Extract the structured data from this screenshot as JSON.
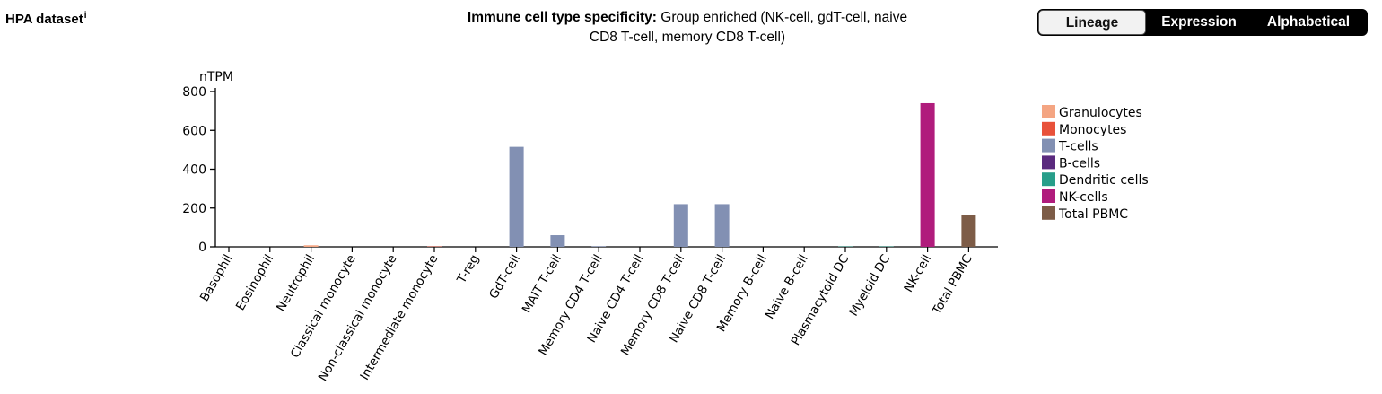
{
  "header": {
    "dataset_label": "HPA dataset",
    "info_marker": "i",
    "specificity_label": "Immune cell type specificity:",
    "specificity_value_line1": "Group enriched (NK-cell, gdT-cell, naive",
    "specificity_value_line2": "CD8 T-cell, memory CD8 T-cell)"
  },
  "sort_buttons": [
    {
      "label": "Lineage",
      "active": true
    },
    {
      "label": "Expression",
      "active": false
    },
    {
      "label": "Alphabetical",
      "active": false
    }
  ],
  "chart_data": {
    "type": "bar",
    "ylabel": "nTPM",
    "ylim": [
      0,
      800
    ],
    "yticks": [
      0,
      200,
      400,
      600,
      800
    ],
    "categories": [
      "Basophil",
      "Eosinophil",
      "Neutrophil",
      "Classical monocyte",
      "Non-classical monocyte",
      "Intermediate monocyte",
      "T-reg",
      "GdT-cell",
      "MAIT T-cell",
      "Memory CD4 T-cell",
      "Naive CD4 T-cell",
      "Memory CD8 T-cell",
      "Naive CD8 T-cell",
      "Memory B-cell",
      "Naive B-cell",
      "Plasmacytoid DC",
      "Myeloid DC",
      "NK-cell",
      "Total PBMC"
    ],
    "values": [
      0,
      0,
      8,
      0,
      0,
      2,
      0,
      515,
      60,
      3,
      0,
      220,
      220,
      0,
      0,
      2,
      2,
      740,
      165
    ],
    "groups": [
      "Granulocytes",
      "Granulocytes",
      "Granulocytes",
      "Monocytes",
      "Monocytes",
      "Monocytes",
      "T-cells",
      "T-cells",
      "T-cells",
      "T-cells",
      "T-cells",
      "T-cells",
      "T-cells",
      "B-cells",
      "B-cells",
      "Dendritic cells",
      "Dendritic cells",
      "NK-cells",
      "Total PBMC"
    ],
    "legend": [
      {
        "name": "Granulocytes",
        "color": "#f4a582"
      },
      {
        "name": "Monocytes",
        "color": "#e8513a"
      },
      {
        "name": "T-cells",
        "color": "#8290b3"
      },
      {
        "name": "B-cells",
        "color": "#5a2a7e"
      },
      {
        "name": "Dendritic cells",
        "color": "#279e8a"
      },
      {
        "name": "NK-cells",
        "color": "#b01c7c"
      },
      {
        "name": "Total PBMC",
        "color": "#7d5c47"
      }
    ],
    "legend_position": "right",
    "grid": false
  }
}
